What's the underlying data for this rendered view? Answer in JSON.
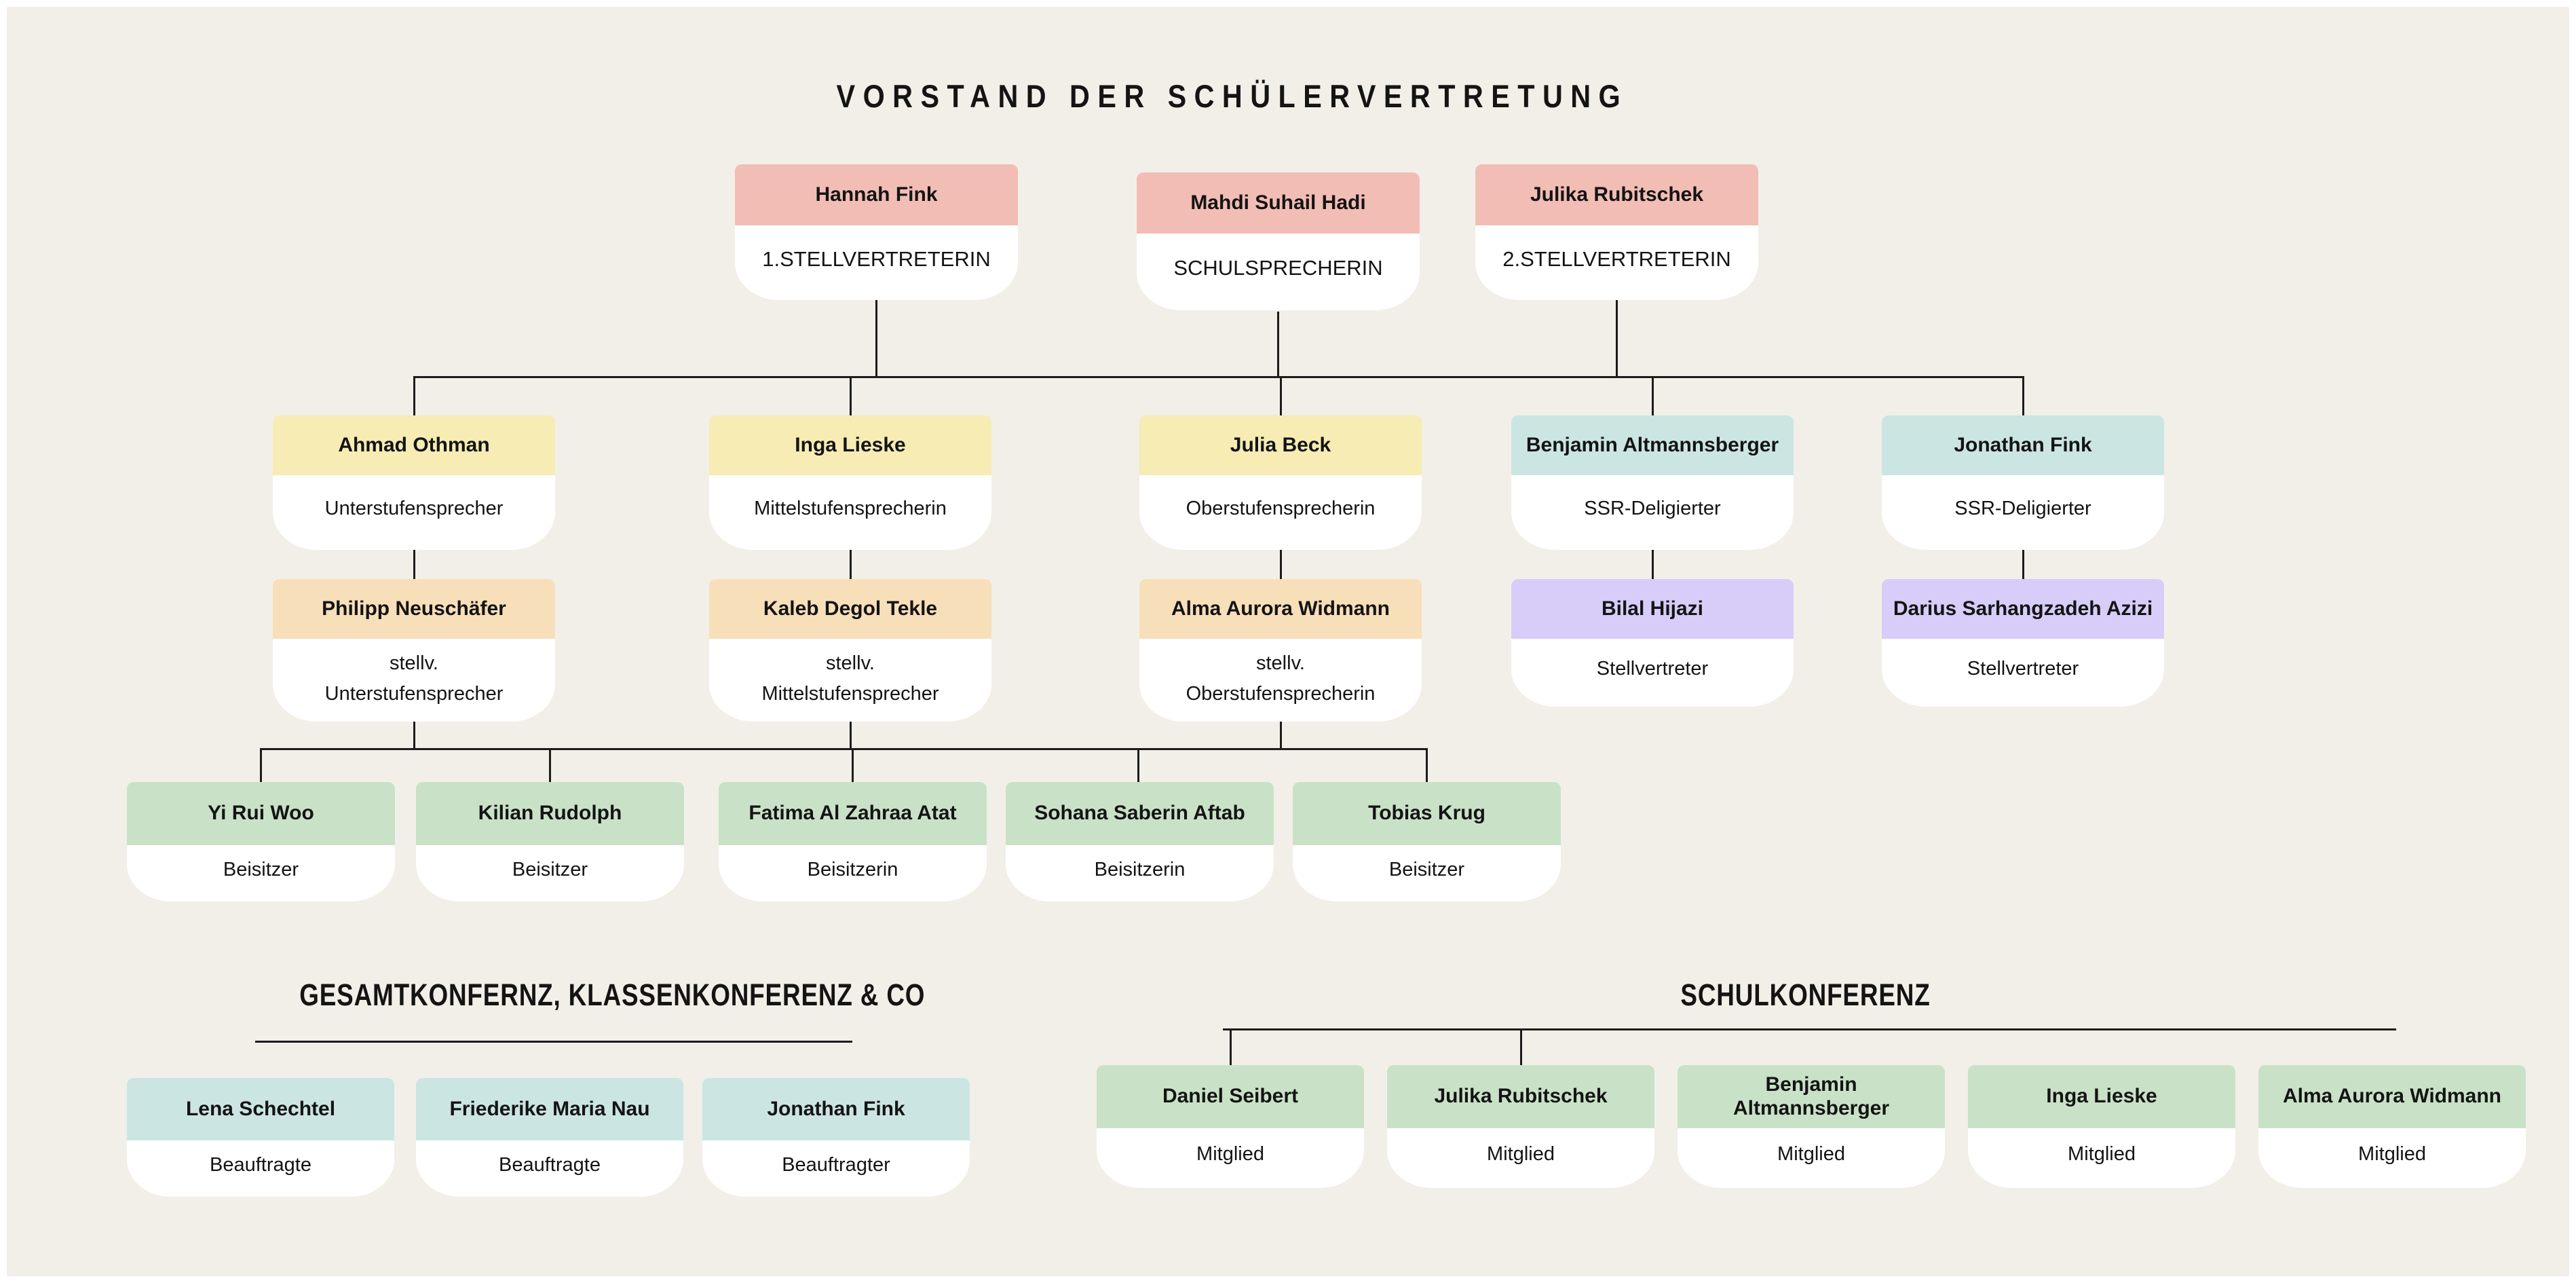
{
  "title": "VORSTAND DER SCHÜLERVERTRETUNG",
  "colors": {
    "background": "#f2efe8",
    "pink": "#f2bdb5",
    "yellow": "#f6ecb4",
    "teal": "#cbe5e3",
    "orange": "#f7dfb9",
    "purple": "#d7cdf8",
    "green": "#c9e2c7",
    "card_body": "#ffffff",
    "line": "#1c1c1c",
    "text": "#141414"
  },
  "org": {
    "level1": [
      {
        "name": "Hannah Fink",
        "role": "1.STELLVERTRETERIN"
      },
      {
        "name": "Mahdi Suhail Hadi",
        "role": "SCHULSPRECHERIN"
      },
      {
        "name": "Julika Rubitschek",
        "role": "2.STELLVERTRETERIN"
      }
    ],
    "level2": [
      {
        "name": "Ahmad Othman",
        "role": "Unterstufensprecher"
      },
      {
        "name": "Inga Lieske",
        "role": "Mittelstufensprecherin"
      },
      {
        "name": "Julia Beck",
        "role": "Oberstufensprecherin"
      },
      {
        "name": "Benjamin Altmannsberger",
        "role": "SSR-Deligierter"
      },
      {
        "name": "Jonathan Fink",
        "role": "SSR-Deligierter"
      }
    ],
    "level3": [
      {
        "name": "Philipp Neuschäfer",
        "role": "stellv.\nUnterstufensprecher"
      },
      {
        "name": "Kaleb Degol Tekle",
        "role": "stellv.\nMittelstufensprecher"
      },
      {
        "name": "Alma Aurora Widmann",
        "role": "stellv.\nOberstufensprecherin"
      },
      {
        "name": "Bilal Hijazi",
        "role": "Stellvertreter"
      },
      {
        "name": "Darius Sarhangzadeh Azizi",
        "role": "Stellvertreter"
      }
    ],
    "level4": [
      {
        "name": "Yi Rui Woo",
        "role": "Beisitzer"
      },
      {
        "name": "Kilian Rudolph",
        "role": "Beisitzer"
      },
      {
        "name": "Fatima Al Zahraa Atat",
        "role": "Beisitzerin"
      },
      {
        "name": "Sohana Saberin Aftab",
        "role": "Beisitzerin"
      },
      {
        "name": "Tobias Krug",
        "role": "Beisitzer"
      }
    ]
  },
  "sections": {
    "left": {
      "title": "GESAMTKONFERNZ, KLASSENKONFERENZ & CO",
      "members": [
        {
          "name": "Lena Schechtel",
          "role": "Beauftragte"
        },
        {
          "name": "Friederike Maria Nau",
          "role": "Beauftragte"
        },
        {
          "name": "Jonathan Fink",
          "role": "Beauftragter"
        }
      ]
    },
    "right": {
      "title": "SCHULKONFERENZ",
      "members": [
        {
          "name": "Daniel Seibert",
          "role": "Mitglied"
        },
        {
          "name": "Julika Rubitschek",
          "role": "Mitglied"
        },
        {
          "name": "Benjamin Altmannsberger",
          "role": "Mitglied"
        },
        {
          "name": "Inga Lieske",
          "role": "Mitglied"
        },
        {
          "name": "Alma Aurora Widmann",
          "role": "Mitglied"
        }
      ]
    }
  }
}
